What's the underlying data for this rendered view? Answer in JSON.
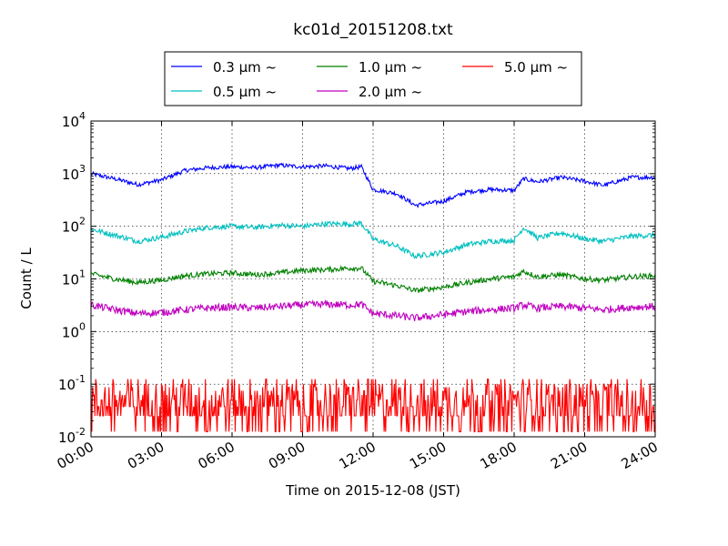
{
  "chart_data": {
    "type": "line",
    "title": "kc01d_20151208.txt",
    "xlabel": "Time on 2015-12-08 (JST)",
    "ylabel": "Count / L",
    "y_scale": "log",
    "ylim": [
      0.01,
      10000
    ],
    "xlim": [
      "00:00",
      "24:00"
    ],
    "x_ticks": [
      "00:00",
      "03:00",
      "06:00",
      "09:00",
      "12:00",
      "15:00",
      "18:00",
      "21:00",
      "24:00"
    ],
    "y_ticks": [
      {
        "value": 0.01,
        "base": "10",
        "exp": "-2"
      },
      {
        "value": 0.1,
        "base": "10",
        "exp": "-1"
      },
      {
        "value": 1,
        "base": "10",
        "exp": "0"
      },
      {
        "value": 10,
        "base": "10",
        "exp": "1"
      },
      {
        "value": 100,
        "base": "10",
        "exp": "2"
      },
      {
        "value": 1000,
        "base": "10",
        "exp": "3"
      },
      {
        "value": 10000,
        "base": "10",
        "exp": "4"
      }
    ],
    "grid": true,
    "legend_position": "top-center",
    "x_hours": [
      0,
      1,
      2,
      3,
      4,
      5,
      6,
      7,
      8,
      9,
      10,
      11,
      11.5,
      12,
      13,
      13.8,
      15,
      16,
      17,
      18,
      18.4,
      19,
      20,
      21,
      21.8,
      23,
      24
    ],
    "series": [
      {
        "name_main": "0.3 μm",
        "name_suffix": "~",
        "color": "#0000ff",
        "noise": 0.04,
        "values": [
          1000,
          800,
          620,
          760,
          1150,
          1300,
          1350,
          1300,
          1450,
          1350,
          1400,
          1250,
          1350,
          500,
          420,
          250,
          300,
          450,
          500,
          480,
          800,
          700,
          850,
          720,
          600,
          850,
          850
        ]
      },
      {
        "name_main": "0.5 μm",
        "name_suffix": "~",
        "color": "#00bfbf",
        "noise": 0.05,
        "values": [
          88,
          68,
          52,
          62,
          80,
          95,
          100,
          95,
          105,
          100,
          112,
          110,
          115,
          57,
          42,
          27,
          32,
          45,
          52,
          54,
          95,
          60,
          75,
          58,
          52,
          65,
          68
        ]
      },
      {
        "name_main": "1.0 μm",
        "name_suffix": "~",
        "color": "#008000",
        "noise": 0.05,
        "values": [
          12.5,
          10,
          8.5,
          9.5,
          11.5,
          12.5,
          13,
          12,
          13,
          14.5,
          15,
          16,
          16,
          9,
          7.5,
          6,
          7,
          8.5,
          10,
          11,
          14,
          11,
          12,
          10,
          9.5,
          11,
          11.5
        ]
      },
      {
        "name_main": "2.0 μm",
        "name_suffix": "~",
        "color": "#bf00bf",
        "noise": 0.07,
        "values": [
          3.2,
          2.6,
          2.2,
          2.3,
          2.6,
          2.8,
          2.9,
          2.8,
          3.0,
          3.2,
          3.3,
          3.2,
          3.3,
          2.2,
          2.0,
          1.8,
          2.1,
          2.4,
          2.6,
          2.8,
          3.2,
          2.8,
          3.0,
          2.8,
          2.6,
          2.9,
          3.0
        ]
      },
      {
        "name_main": "5.0 μm",
        "name_suffix": "~",
        "color": "#ff0000",
        "noisy_low": true,
        "values": [
          0.04,
          0.04,
          0.04,
          0.04,
          0.04,
          0.04,
          0.04,
          0.04,
          0.04,
          0.04,
          0.04,
          0.04,
          0.04,
          0.04,
          0.04,
          0.04,
          0.04,
          0.04,
          0.04,
          0.04,
          0.04,
          0.04,
          0.04,
          0.04,
          0.04,
          0.04,
          0.04
        ]
      }
    ]
  }
}
